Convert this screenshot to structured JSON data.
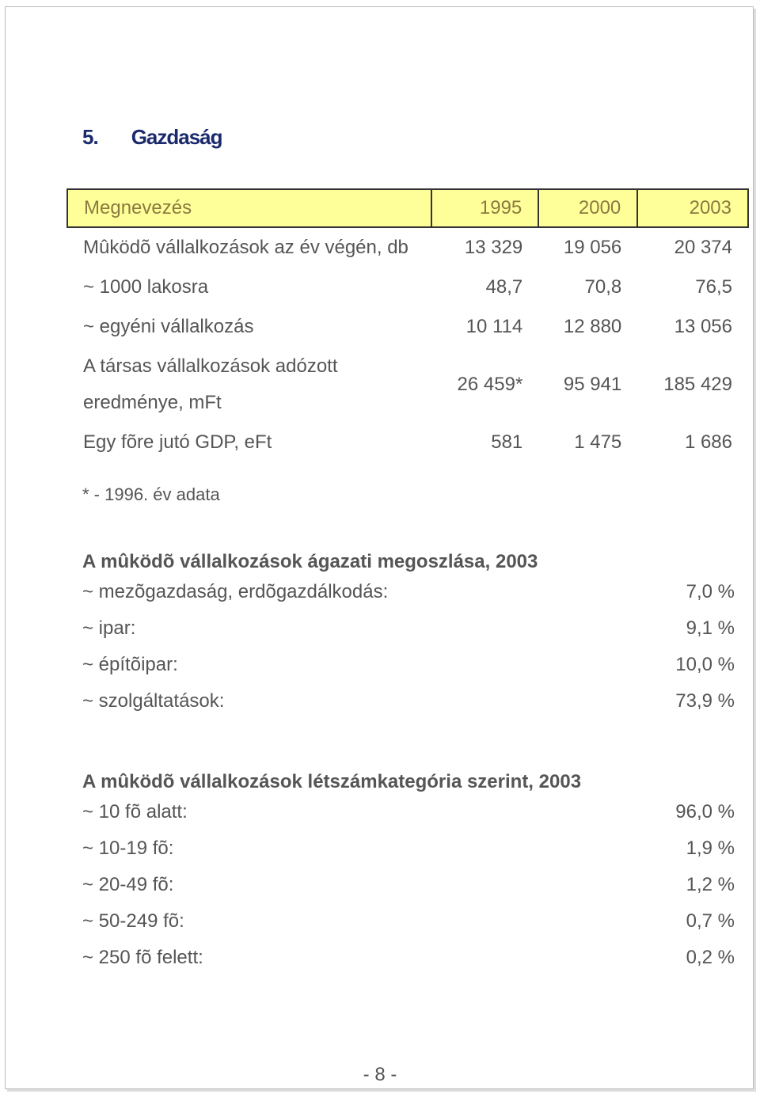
{
  "heading": {
    "number": "5.",
    "title": "Gazdaság"
  },
  "table": {
    "header": [
      "Megnevezés",
      "1995",
      "2000",
      "2003"
    ],
    "rows": [
      [
        "Mûködõ vállalkozások az év végén, db",
        "13 329",
        "19 056",
        "20 374"
      ],
      [
        "~ 1000 lakosra",
        "48,7",
        "70,8",
        "76,5"
      ],
      [
        "~ egyéni vállalkozás",
        "10 114",
        "12 880",
        "13 056"
      ],
      [
        "A társas vállalkozások adózott eredménye, mFt",
        "26 459*",
        "95 941",
        "185 429"
      ],
      [
        "Egy fõre jutó GDP, eFt",
        "581",
        "1 475",
        "1 686"
      ]
    ],
    "note": "* - 1996. év adata"
  },
  "sections": [
    {
      "title": "A mûködõ vállalkozások ágazati megoszlása, 2003",
      "items": [
        [
          "~ mezõgazdaság, erdõgazdálkodás:",
          "7,0 %"
        ],
        [
          "~ ipar:",
          "9,1 %"
        ],
        [
          "~ építõipar:",
          "10,0 %"
        ],
        [
          "~ szolgáltatások:",
          "73,9 %"
        ]
      ]
    },
    {
      "title": "A mûködõ vállalkozások létszámkategória szerint, 2003",
      "items": [
        [
          "~ 10 fõ alatt:",
          "96,0 %"
        ],
        [
          "~ 10-19 fõ:",
          "1,9 %"
        ],
        [
          "~ 20-49 fõ:",
          "1,2 %"
        ],
        [
          "~ 50-249 fõ:",
          "0,7 %"
        ],
        [
          "~ 250 fõ felett:",
          "0,2 %"
        ]
      ]
    }
  ],
  "footer": {
    "page": "- 8 -"
  }
}
